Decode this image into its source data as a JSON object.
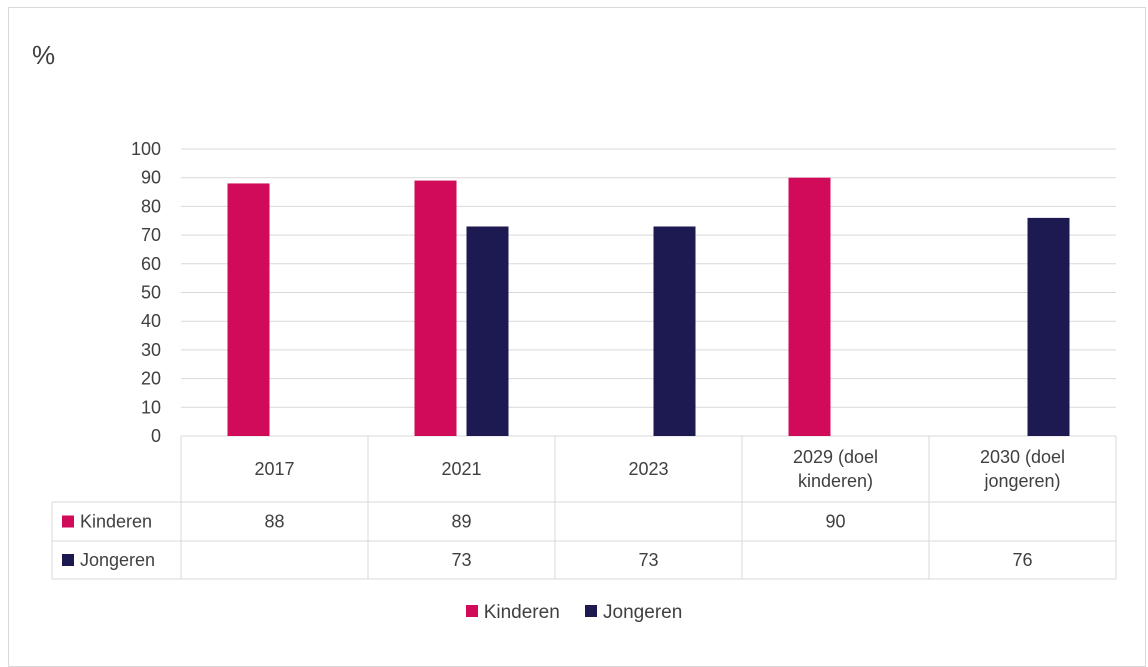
{
  "chart_data": {
    "type": "bar",
    "ylabel": "%",
    "ylim": [
      0,
      100
    ],
    "yticks": [
      0,
      10,
      20,
      30,
      40,
      50,
      60,
      70,
      80,
      90,
      100
    ],
    "grid": true,
    "legend_position": "bottom",
    "categories": [
      [
        "2017"
      ],
      [
        "2021"
      ],
      [
        "2023"
      ],
      [
        "2029 (doel",
        "kinderen)"
      ],
      [
        "2030 (doel",
        "jongeren)"
      ]
    ],
    "series": [
      {
        "name": "Kinderen",
        "color": "#d10a5a",
        "values": [
          88,
          89,
          null,
          90,
          null
        ],
        "labels": [
          "88",
          "89",
          "",
          "90",
          ""
        ]
      },
      {
        "name": "Jongeren",
        "color": "#1d1a52",
        "values": [
          null,
          73,
          73,
          null,
          76
        ],
        "labels": [
          "",
          "73",
          "73",
          "",
          "76"
        ]
      }
    ]
  }
}
